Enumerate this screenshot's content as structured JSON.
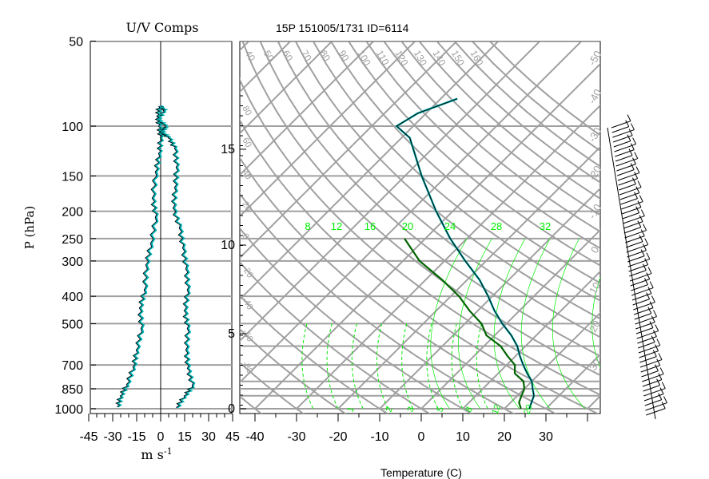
{
  "header": {
    "left_title": "U/V Comps",
    "main_title": "15P 151005/1731 ID=6114"
  },
  "axes": {
    "pressure_label": "P (hPa)",
    "pressure_ticks": [
      "50",
      "100",
      "150",
      "200",
      "250",
      "300",
      "400",
      "500",
      "700",
      "850",
      "1000"
    ],
    "height_ticks": [
      "15",
      "10",
      "5",
      "0"
    ],
    "wind_ticks": [
      "-45",
      "-30",
      "-15",
      "0",
      "15",
      "30",
      "45"
    ],
    "wind_unit": "m s",
    "wind_unit_exp": "-1",
    "temperature_ticks": [
      "-40",
      "-30",
      "-20",
      "-10",
      "0",
      "10",
      "20",
      "30"
    ],
    "temperature_label": "Temperature (C)"
  },
  "isentropes": {
    "theta_labels": [
      "40",
      "50",
      "60",
      "70",
      "80",
      "90",
      "100",
      "110",
      "120",
      "130",
      "140",
      "150",
      "160"
    ],
    "side_labels": [
      "80",
      "60",
      "40",
      "20",
      "0",
      "-20",
      "-40",
      "-60",
      "-80"
    ],
    "isotherm_right_labels": [
      "-50",
      "-40",
      "-30",
      "-20",
      "-10",
      "0",
      "10",
      "20",
      "30"
    ]
  },
  "mixing_ratio_labels": [
    "8",
    "12",
    "16",
    "20",
    "24",
    "28",
    "32"
  ],
  "bottom_green_labels": [
    "1",
    "2",
    "3",
    "5",
    "8",
    "12",
    "20"
  ],
  "colors": {
    "grid": "#a0a0a0",
    "temperature": "#000000",
    "dewpoint_highlight": "#006400",
    "profile_cyan": "#00b3b3",
    "profile_blue": "#0000cc",
    "mixing_ratio": "#00ee00",
    "axis": "#000000"
  },
  "chart_data": [
    {
      "type": "line",
      "title": "U/V Comps",
      "ylabel": "P (hPa)",
      "xlabel": "m s -1",
      "xlim": [
        -45,
        45
      ],
      "y_scale": "log",
      "ylim": [
        1000,
        50
      ],
      "series": [
        {
          "values": [
            [
              0,
              85
            ],
            [
              2,
              88
            ],
            [
              -2,
              95
            ],
            [
              3,
              100
            ],
            [
              0,
              105
            ],
            [
              5,
              110
            ],
            [
              9,
              120
            ],
            [
              10,
              140
            ],
            [
              9,
              165
            ],
            [
              8,
              195
            ],
            [
              12,
              230
            ],
            [
              14,
              270
            ],
            [
              16,
              320
            ],
            [
              17,
              380
            ],
            [
              15,
              450
            ],
            [
              17,
              520
            ],
            [
              16,
              620
            ],
            [
              17,
              720
            ],
            [
              20,
              830
            ],
            [
              15,
              900
            ],
            [
              10,
              990
            ]
          ]
        },
        {
          "values": [
            [
              -1,
              85
            ],
            [
              -2,
              92
            ],
            [
              -1,
              100
            ],
            [
              0,
              110
            ],
            [
              -1,
              125
            ],
            [
              -3,
              145
            ],
            [
              -5,
              180
            ],
            [
              -3,
              210
            ],
            [
              -6,
              260
            ],
            [
              -9,
              310
            ],
            [
              -10,
              380
            ],
            [
              -13,
              440
            ],
            [
              -12,
              520
            ],
            [
              -15,
              620
            ],
            [
              -17,
              710
            ],
            [
              -21,
              820
            ],
            [
              -25,
              900
            ],
            [
              -27,
              985
            ]
          ]
        }
      ]
    },
    {
      "type": "line",
      "title": "15P 151005/1731 ID=6114",
      "xlabel": "Temperature (C)",
      "xlim": [
        -43,
        43
      ],
      "ylim": [
        1000,
        50
      ],
      "y_scale": "log",
      "series": [
        {
          "values": [
            [
              26,
              1000
            ],
            [
              25,
              950
            ],
            [
              24,
              900
            ],
            [
              22,
              850
            ],
            [
              20,
              800
            ],
            [
              17,
              750
            ],
            [
              14,
              700
            ],
            [
              11,
              650
            ],
            [
              8,
              600
            ],
            [
              4,
              550
            ],
            [
              -1,
              500
            ],
            [
              -6,
              450
            ],
            [
              -11,
              400
            ],
            [
              -17,
              350
            ],
            [
              -25,
              300
            ],
            [
              -34,
              250
            ],
            [
              -44,
              200
            ],
            [
              -56,
              150
            ],
            [
              -68,
              110
            ],
            [
              -74,
              100
            ],
            [
              -72,
              90
            ],
            [
              -66,
              80
            ]
          ]
        },
        {
          "values": [
            [
              24,
              1000
            ],
            [
              22,
              950
            ],
            [
              21,
              900
            ],
            [
              20,
              850
            ],
            [
              18,
              800
            ],
            [
              14,
              750
            ],
            [
              12,
              700
            ],
            [
              8,
              650
            ],
            [
              4,
              600
            ],
            [
              -2,
              550
            ],
            [
              -6,
              500
            ],
            [
              -12,
              450
            ],
            [
              -18,
              400
            ],
            [
              -26,
              350
            ],
            [
              -36,
              300
            ],
            [
              -45,
              250
            ]
          ]
        }
      ]
    }
  ]
}
